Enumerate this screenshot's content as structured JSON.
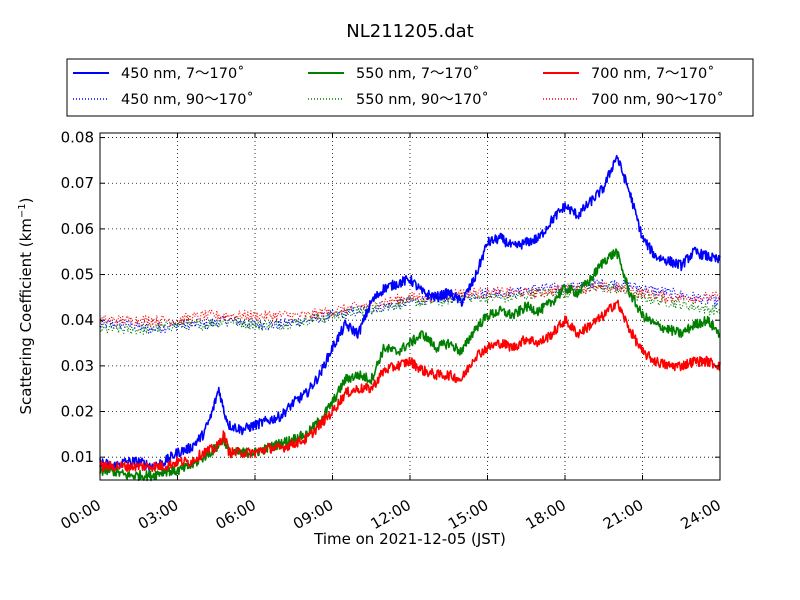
{
  "chart_data": {
    "type": "line",
    "title": "NL211205.dat",
    "xlabel": "Time on 2021-12-05 (JST)",
    "ylabel_main": "Scattering Coefficient (km",
    "ylabel_exp": "−1",
    "ylabel_close": ")",
    "xlim": [
      0,
      24
    ],
    "ylim": [
      0.005,
      0.081
    ],
    "xticks": [
      0,
      3,
      6,
      9,
      12,
      15,
      18,
      21,
      24
    ],
    "xtick_labels": [
      "00:00",
      "03:00",
      "06:00",
      "09:00",
      "12:00",
      "15:00",
      "18:00",
      "21:00",
      "24:00"
    ],
    "yticks": [
      0.01,
      0.02,
      0.03,
      0.04,
      0.05,
      0.06,
      0.07,
      0.08
    ],
    "ytick_labels": [
      "0.01",
      "0.02",
      "0.03",
      "0.04",
      "0.05",
      "0.06",
      "0.07",
      "0.08"
    ],
    "grid": true,
    "legend_position": "top",
    "series": [
      {
        "name": "450 nm, 7～170˚",
        "color": "#0000ff",
        "style": "solid",
        "x": [
          0,
          0.5,
          1,
          1.5,
          2,
          2.5,
          3,
          3.5,
          4,
          4.3,
          4.6,
          4.8,
          5,
          5.5,
          6,
          6.5,
          7,
          7.5,
          8,
          8.5,
          9,
          9.5,
          10,
          10.5,
          11,
          11.5,
          12,
          12.5,
          13,
          13.5,
          14,
          14.5,
          15,
          15.5,
          16,
          16.5,
          17,
          17.5,
          18,
          18.5,
          19,
          19.5,
          20,
          20.5,
          21,
          21.5,
          22,
          22.5,
          23,
          23.5,
          24
        ],
        "y": [
          0.009,
          0.008,
          0.009,
          0.009,
          0.008,
          0.009,
          0.011,
          0.012,
          0.015,
          0.019,
          0.025,
          0.02,
          0.017,
          0.016,
          0.017,
          0.018,
          0.019,
          0.022,
          0.024,
          0.028,
          0.034,
          0.039,
          0.037,
          0.044,
          0.047,
          0.048,
          0.049,
          0.046,
          0.045,
          0.046,
          0.044,
          0.049,
          0.057,
          0.058,
          0.056,
          0.057,
          0.058,
          0.062,
          0.065,
          0.063,
          0.066,
          0.069,
          0.076,
          0.068,
          0.058,
          0.054,
          0.053,
          0.052,
          0.055,
          0.054,
          0.053
        ]
      },
      {
        "name": "450 nm, 90～170˚",
        "color": "#0000ff",
        "style": "dotted",
        "x": [
          0,
          1,
          2,
          3,
          4,
          5,
          6,
          7,
          8,
          9,
          10,
          11,
          12,
          13,
          14,
          15,
          16,
          17,
          18,
          19,
          20,
          21,
          22,
          23,
          24
        ],
        "y": [
          0.039,
          0.039,
          0.038,
          0.039,
          0.039,
          0.04,
          0.039,
          0.039,
          0.04,
          0.041,
          0.042,
          0.043,
          0.044,
          0.045,
          0.045,
          0.046,
          0.046,
          0.047,
          0.047,
          0.048,
          0.048,
          0.047,
          0.046,
          0.045,
          0.044
        ]
      },
      {
        "name": "550 nm, 7～170˚",
        "color": "#008000",
        "style": "solid",
        "x": [
          0,
          0.5,
          1,
          1.5,
          2,
          2.5,
          3,
          3.5,
          4,
          4.5,
          4.8,
          5,
          5.5,
          6,
          6.5,
          7,
          7.5,
          8,
          8.5,
          9,
          9.5,
          10,
          10.5,
          11,
          11.5,
          12,
          12.5,
          13,
          13.5,
          14,
          14.5,
          15,
          15.5,
          16,
          16.5,
          17,
          17.5,
          18,
          18.5,
          19,
          19.5,
          20,
          20.5,
          21,
          21.5,
          22,
          22.5,
          23,
          23.5,
          24
        ],
        "y": [
          0.007,
          0.007,
          0.006,
          0.006,
          0.006,
          0.007,
          0.007,
          0.008,
          0.01,
          0.012,
          0.014,
          0.011,
          0.011,
          0.011,
          0.012,
          0.013,
          0.014,
          0.015,
          0.018,
          0.022,
          0.027,
          0.028,
          0.027,
          0.034,
          0.033,
          0.035,
          0.037,
          0.034,
          0.035,
          0.033,
          0.038,
          0.041,
          0.042,
          0.041,
          0.043,
          0.042,
          0.044,
          0.047,
          0.046,
          0.049,
          0.053,
          0.055,
          0.046,
          0.041,
          0.039,
          0.038,
          0.037,
          0.039,
          0.04,
          0.037
        ]
      },
      {
        "name": "550 nm, 90～170˚",
        "color": "#008000",
        "style": "dotted",
        "x": [
          0,
          1,
          2,
          3,
          4,
          5,
          6,
          7,
          8,
          9,
          10,
          11,
          12,
          13,
          14,
          15,
          16,
          17,
          18,
          19,
          20,
          21,
          22,
          23,
          24
        ],
        "y": [
          0.038,
          0.038,
          0.038,
          0.039,
          0.039,
          0.04,
          0.039,
          0.039,
          0.04,
          0.041,
          0.042,
          0.043,
          0.044,
          0.044,
          0.045,
          0.045,
          0.045,
          0.046,
          0.046,
          0.047,
          0.047,
          0.045,
          0.044,
          0.043,
          0.042
        ]
      },
      {
        "name": "700 nm, 7～170˚",
        "color": "#ff0000",
        "style": "solid",
        "x": [
          0,
          0.5,
          1,
          1.5,
          2,
          2.5,
          3,
          3.5,
          4,
          4.5,
          4.8,
          5,
          5.5,
          6,
          6.5,
          7,
          7.5,
          8,
          8.5,
          9,
          9.5,
          10,
          10.5,
          11,
          11.5,
          12,
          12.5,
          13,
          13.5,
          14,
          14.5,
          15,
          15.5,
          16,
          16.5,
          17,
          17.5,
          18,
          18.5,
          19,
          19.5,
          20,
          20.5,
          21,
          21.5,
          22,
          22.5,
          23,
          23.5,
          24
        ],
        "y": [
          0.008,
          0.008,
          0.008,
          0.008,
          0.008,
          0.008,
          0.009,
          0.009,
          0.011,
          0.012,
          0.015,
          0.011,
          0.011,
          0.011,
          0.012,
          0.012,
          0.013,
          0.014,
          0.017,
          0.02,
          0.024,
          0.025,
          0.025,
          0.029,
          0.03,
          0.031,
          0.029,
          0.028,
          0.028,
          0.027,
          0.032,
          0.034,
          0.035,
          0.034,
          0.036,
          0.035,
          0.037,
          0.04,
          0.037,
          0.039,
          0.041,
          0.044,
          0.038,
          0.033,
          0.031,
          0.03,
          0.03,
          0.031,
          0.031,
          0.03
        ]
      },
      {
        "name": "700 nm, 90～170˚",
        "color": "#ff0000",
        "style": "dotted",
        "x": [
          0,
          1,
          2,
          3,
          4,
          5,
          6,
          7,
          8,
          9,
          10,
          11,
          12,
          13,
          14,
          15,
          16,
          17,
          18,
          19,
          20,
          21,
          22,
          23,
          24
        ],
        "y": [
          0.04,
          0.04,
          0.04,
          0.04,
          0.041,
          0.041,
          0.041,
          0.041,
          0.041,
          0.042,
          0.043,
          0.044,
          0.045,
          0.045,
          0.046,
          0.046,
          0.046,
          0.046,
          0.047,
          0.047,
          0.047,
          0.046,
          0.045,
          0.045,
          0.045
        ]
      }
    ]
  }
}
